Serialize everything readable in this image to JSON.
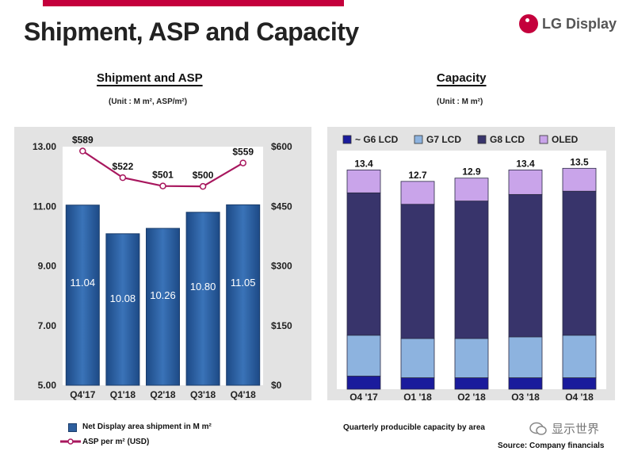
{
  "slide": {
    "title": "Shipment, ASP and Capacity",
    "logo_text": "LG Display",
    "source": "Source: Company financials",
    "watermark": "显示世界",
    "colors": {
      "accent": "#c4003c",
      "bar": "#2e5f9e",
      "asp_line": "#a8175e"
    }
  },
  "chart_data": [
    {
      "type": "bar",
      "title": "Shipment and ASP",
      "unit": "(Unit : M m², ASP/m²)",
      "categories": [
        "Q4'17",
        "Q1'18",
        "Q2'18",
        "Q3'18",
        "Q4'18"
      ],
      "series": [
        {
          "name": "Net Display area shipment in M m²",
          "values": [
            11.04,
            10.08,
            10.26,
            10.8,
            11.05
          ],
          "labels": [
            "11.04",
            "10.08",
            "10.26",
            "10.80",
            "11.05"
          ],
          "axis": "left"
        },
        {
          "name": "ASP per m² (USD)",
          "type": "line",
          "values": [
            589,
            522,
            501,
            500,
            559
          ],
          "labels": [
            "$589",
            "$522",
            "$501",
            "$500",
            "$559"
          ],
          "axis": "right"
        }
      ],
      "ylim": [
        5,
        13
      ],
      "yticks": [
        5,
        7,
        9,
        11,
        13
      ],
      "ytick_labels": [
        "5.00",
        "7.00",
        "9.00",
        "11.00",
        "13.00"
      ],
      "y2lim": [
        0,
        600
      ],
      "y2ticks": [
        0,
        150,
        300,
        450,
        600
      ],
      "y2tick_labels": [
        "$0",
        "$150",
        "$300",
        "$450",
        "$600"
      ],
      "legend": [
        "Net Display area shipment in M m²",
        "ASP per m² (USD)"
      ],
      "legend_position": "bottom"
    },
    {
      "type": "bar",
      "stacked": true,
      "title": "Capacity",
      "unit": "(Unit : M m²)",
      "categories": [
        "Q4 '17",
        "Q1 '18",
        "Q2 '18",
        "Q3 '18",
        "Q4 '18"
      ],
      "series": [
        {
          "name": "~ G6 LCD",
          "color": "#1a1b9c",
          "values": [
            0.8,
            0.7,
            0.7,
            0.7,
            0.7
          ]
        },
        {
          "name": "G7 LCD",
          "color": "#8db3df",
          "values": [
            2.5,
            2.4,
            2.4,
            2.5,
            2.6
          ]
        },
        {
          "name": "G8 LCD",
          "color": "#38346b",
          "values": [
            8.7,
            8.2,
            8.4,
            8.7,
            8.8
          ]
        },
        {
          "name": "OLED",
          "color": "#c9a4ea",
          "values": [
            1.4,
            1.4,
            1.4,
            1.5,
            1.4
          ]
        }
      ],
      "totals": [
        13.4,
        12.7,
        12.9,
        13.4,
        13.5
      ],
      "total_labels": [
        "13.4",
        "12.7",
        "12.9",
        "13.4",
        "13.5"
      ],
      "ylim": [
        0,
        14
      ],
      "legend_position": "top",
      "caption": "Quarterly producible capacity by area"
    }
  ]
}
